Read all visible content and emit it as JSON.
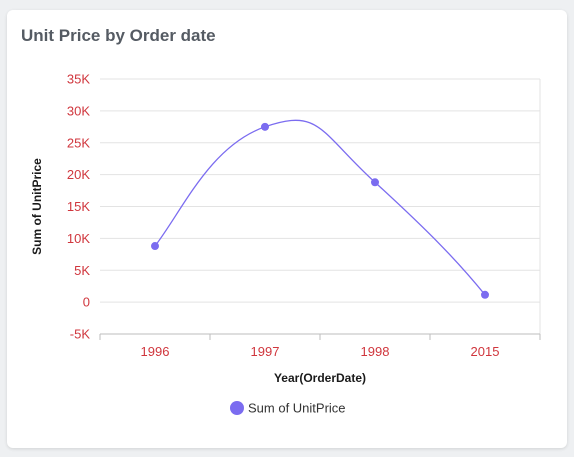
{
  "card": {
    "title": "Unit Price by Order date"
  },
  "chart_data": {
    "type": "line",
    "categories": [
      "1996",
      "1997",
      "1998",
      "2015"
    ],
    "series": [
      {
        "name": "Sum of UnitPrice",
        "values": [
          8800,
          27500,
          18800,
          1150
        ],
        "color": "#7b6cf0"
      }
    ],
    "xlabel": "Year(OrderDate)",
    "ylabel": "Sum of UnitPrice",
    "ylim": [
      -5000,
      35000
    ],
    "yticks": [
      -5000,
      0,
      5000,
      10000,
      15000,
      20000,
      25000,
      30000,
      35000
    ],
    "ytick_labels": [
      "-5K",
      "0",
      "5K",
      "10K",
      "15K",
      "20K",
      "25K",
      "30K",
      "35K"
    ],
    "grid": true,
    "smooth": true,
    "legend_position": "bottom-center",
    "colors": {
      "tick_label": "#d0363d",
      "grid": "#e3e3e3"
    }
  }
}
